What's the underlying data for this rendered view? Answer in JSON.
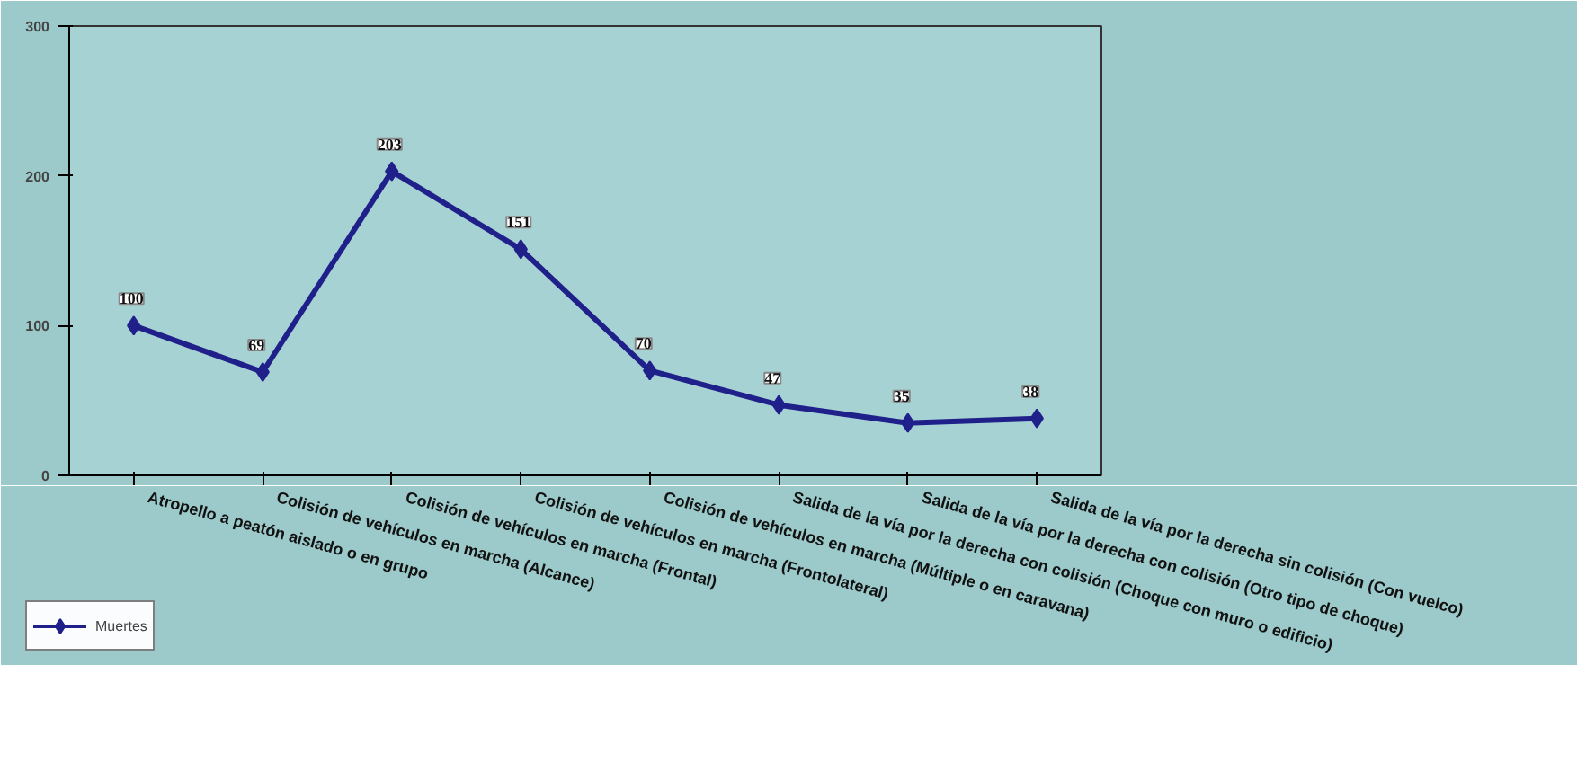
{
  "chart_data": {
    "type": "line",
    "categories": [
      "Atropello a peatón aislado o en grupo",
      "Colisión de vehículos en marcha (Alcance)",
      "Colisión de vehículos en marcha (Frontal)",
      "Colisión de vehículos en marcha (Frontolateral)",
      "Colisión de vehículos en marcha (Múltiple o en caravana)",
      "Salida de la vía por la derecha con colisión (Choque con muro o edificio)",
      "Salida de la vía por la derecha con colisión (Otro tipo de choque)",
      "Salida de la vía por la derecha sin colisión (Con vuelco)"
    ],
    "series": [
      {
        "name": "Muertes",
        "color": "#20208a",
        "values": [
          100,
          69,
          203,
          151,
          70,
          47,
          35,
          38
        ]
      }
    ],
    "ylim": [
      0,
      300
    ],
    "yticks": [
      0,
      100,
      200,
      300
    ],
    "data_labels": true,
    "marker": "diamond",
    "legend": "bottom left",
    "grid": false
  }
}
